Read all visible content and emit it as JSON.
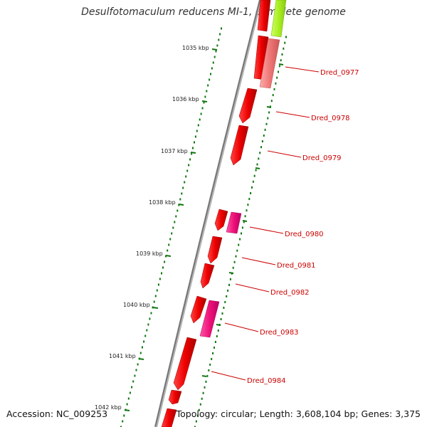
{
  "title": "Desulfotomaculum reducens MI-1, complete genome",
  "footer": {
    "accession": "Accession: NC_009253",
    "summary": "Topology: circular; Length: 3,608,104 bp; Genes: 3,375"
  },
  "kbp_labels": [
    "1035 kbp",
    "1036 kbp",
    "1037 kbp",
    "1038 kbp",
    "1039 kbp",
    "1040 kbp",
    "1041 kbp",
    "1042 kbp"
  ],
  "genes": [
    {
      "name": "Dred_0977"
    },
    {
      "name": "Dred_0978"
    },
    {
      "name": "Dred_0979"
    },
    {
      "name": "Dred_0980"
    },
    {
      "name": "Dred_0981"
    },
    {
      "name": "Dred_0982"
    },
    {
      "name": "Dred_0983"
    },
    {
      "name": "Dred_0984"
    }
  ],
  "colors": {
    "backbone": "#888888",
    "gene_red": "#ee0000",
    "gene_pink": "#ee1177",
    "gene_salmon": "#ee7777",
    "gene_lime": "#aaee22",
    "tick_green": "#117711",
    "label_red": "#cc0000"
  }
}
